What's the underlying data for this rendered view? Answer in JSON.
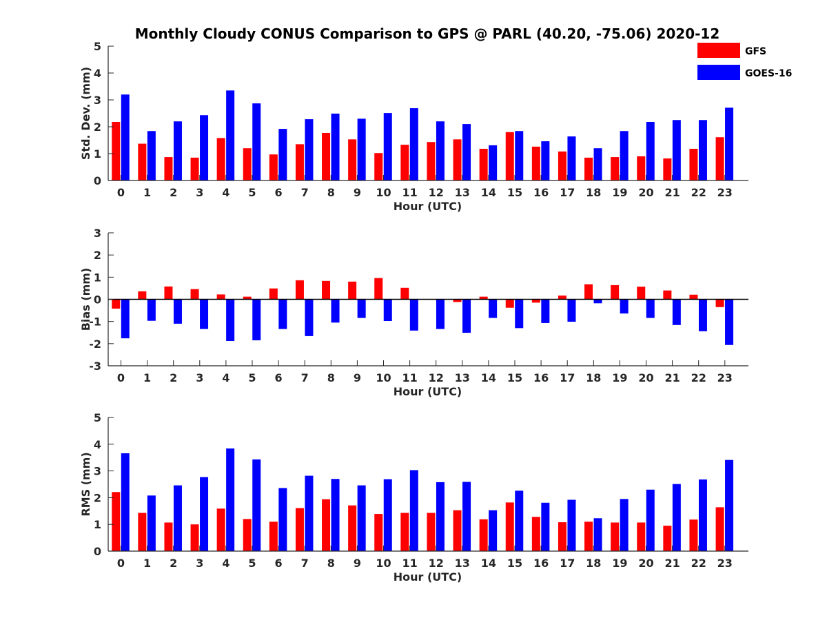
{
  "figure": {
    "title": "Monthly Cloudy CONUS Comparison to GPS @ PARL (40.20, -75.06) 2020-12"
  },
  "legend": {
    "placement": "top-right",
    "items": [
      {
        "name": "GFS",
        "color": "#ff0000"
      },
      {
        "name": "GOES-16",
        "color": "#0000ff"
      }
    ]
  },
  "chart_data": [
    {
      "type": "bar",
      "ylabel": "Std. Dev. (mm)",
      "xlabel": "Hour (UTC)",
      "ylim": [
        0,
        5
      ],
      "yticks": [
        0,
        1,
        2,
        3,
        4,
        5
      ],
      "categories": [
        0,
        1,
        2,
        3,
        4,
        5,
        6,
        7,
        8,
        9,
        10,
        11,
        12,
        13,
        14,
        15,
        16,
        17,
        18,
        19,
        20,
        21,
        22,
        23
      ],
      "series": [
        {
          "name": "GFS",
          "color": "#ff0000",
          "values": [
            2.18,
            1.37,
            0.87,
            0.85,
            1.58,
            1.2,
            0.97,
            1.35,
            1.77,
            1.53,
            1.02,
            1.33,
            1.43,
            1.53,
            1.18,
            1.8,
            1.26,
            1.08,
            0.85,
            0.87,
            0.9,
            0.82,
            1.18,
            1.61
          ]
        },
        {
          "name": "GOES-16",
          "color": "#0000ff",
          "values": [
            3.2,
            1.84,
            2.2,
            2.43,
            3.35,
            2.87,
            1.92,
            2.28,
            2.49,
            2.3,
            2.51,
            2.69,
            2.2,
            2.1,
            1.31,
            1.84,
            1.46,
            1.64,
            1.2,
            1.84,
            2.18,
            2.25,
            2.25,
            2.71
          ]
        }
      ]
    },
    {
      "type": "bar",
      "ylabel": "Bias (mm)",
      "xlabel": "Hour (UTC)",
      "ylim": [
        -3,
        3
      ],
      "yticks": [
        -3,
        -2,
        -1,
        0,
        1,
        2,
        3
      ],
      "categories": [
        0,
        1,
        2,
        3,
        4,
        5,
        6,
        7,
        8,
        9,
        10,
        11,
        12,
        13,
        14,
        15,
        16,
        17,
        18,
        19,
        20,
        21,
        22,
        23
      ],
      "series": [
        {
          "name": "GFS",
          "color": "#ff0000",
          "values": [
            -0.42,
            0.36,
            0.58,
            0.46,
            0.22,
            0.12,
            0.49,
            0.86,
            0.83,
            0.8,
            0.96,
            0.52,
            0.0,
            -0.12,
            0.12,
            -0.38,
            -0.15,
            0.17,
            0.68,
            0.64,
            0.57,
            0.4,
            0.21,
            -0.35
          ]
        },
        {
          "name": "GOES-16",
          "color": "#0000ff",
          "values": [
            -1.76,
            -0.97,
            -1.1,
            -1.34,
            -1.88,
            -1.85,
            -1.34,
            -1.66,
            -1.05,
            -0.84,
            -0.98,
            -1.41,
            -1.34,
            -1.51,
            -0.84,
            -1.3,
            -1.07,
            -1.01,
            -0.18,
            -0.64,
            -0.84,
            -1.16,
            -1.44,
            -2.06
          ]
        }
      ]
    },
    {
      "type": "bar",
      "ylabel": "RMS (mm)",
      "xlabel": "Hour (UTC)",
      "ylim": [
        0,
        5
      ],
      "yticks": [
        0,
        1,
        2,
        3,
        4,
        5
      ],
      "categories": [
        0,
        1,
        2,
        3,
        4,
        5,
        6,
        7,
        8,
        9,
        10,
        11,
        12,
        13,
        14,
        15,
        16,
        17,
        18,
        19,
        20,
        21,
        22,
        23
      ],
      "series": [
        {
          "name": "GFS",
          "color": "#ff0000",
          "values": [
            2.21,
            1.43,
            1.07,
            1.0,
            1.59,
            1.2,
            1.1,
            1.61,
            1.94,
            1.71,
            1.39,
            1.43,
            1.43,
            1.53,
            1.19,
            1.82,
            1.28,
            1.08,
            1.1,
            1.07,
            1.07,
            0.95,
            1.18,
            1.64
          ]
        },
        {
          "name": "GOES-16",
          "color": "#0000ff",
          "values": [
            3.66,
            2.08,
            2.46,
            2.77,
            3.84,
            3.43,
            2.36,
            2.82,
            2.7,
            2.46,
            2.69,
            3.03,
            2.58,
            2.59,
            1.53,
            2.26,
            1.81,
            1.92,
            1.23,
            1.95,
            2.3,
            2.51,
            2.68,
            3.41
          ]
        }
      ]
    }
  ]
}
